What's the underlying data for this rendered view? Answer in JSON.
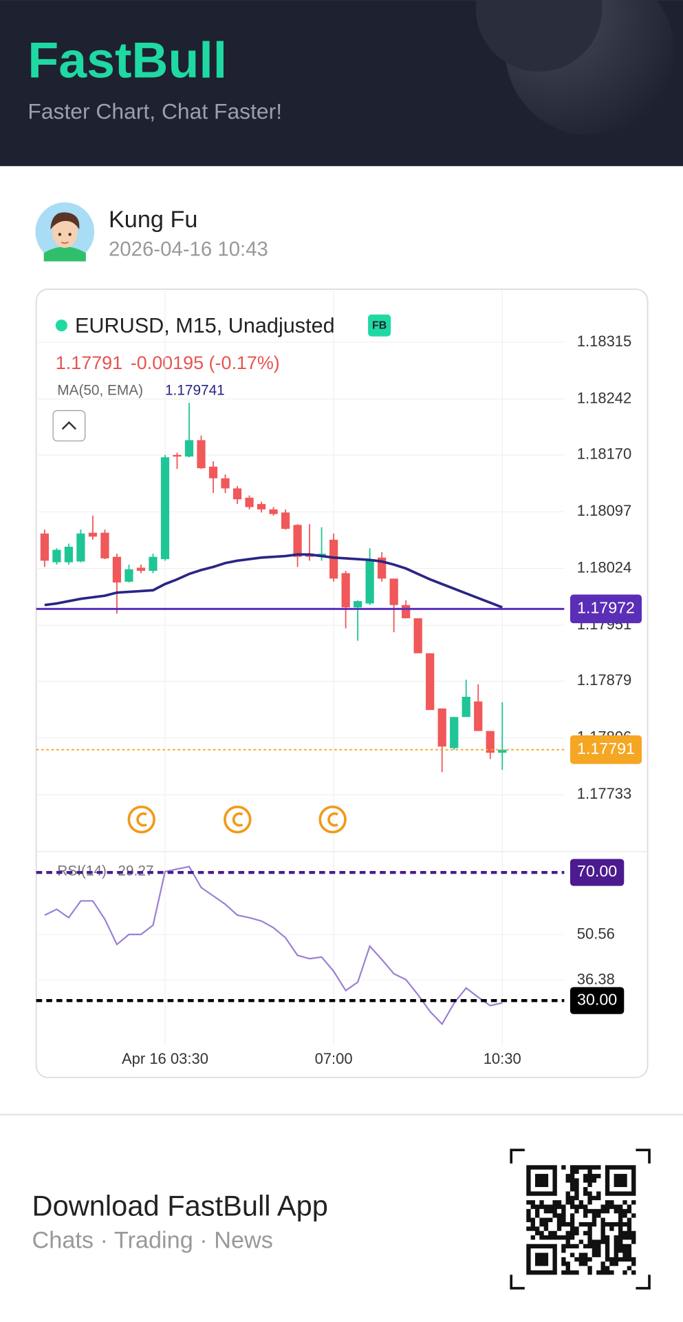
{
  "header": {
    "logo": "FastBull",
    "tagline": "Faster Chart, Chat Faster!"
  },
  "post": {
    "author": "Kung Fu",
    "timestamp": "2026-04-16 10:43"
  },
  "chart_data": [
    {
      "type": "candlestick",
      "title": "EURUSD, M15, Unadjusted",
      "badge": "FB",
      "last_price": 1.17791,
      "change": "-0.00195 (-0.17%)",
      "ma": {
        "label": "MA(50, EMA)",
        "value": 1.179741,
        "color": "#2a2585",
        "values": [
          1.17977,
          1.17979,
          1.17982,
          1.17985,
          1.17987,
          1.17989,
          1.17993,
          1.17994,
          1.17995,
          1.17996,
          1.18004,
          1.1801,
          1.18017,
          1.18022,
          1.18026,
          1.18031,
          1.18034,
          1.18036,
          1.18038,
          1.18039,
          1.1804,
          1.18042,
          1.18042,
          1.1804,
          1.18038,
          1.18037,
          1.18036,
          1.18035,
          1.18033,
          1.18029,
          1.18024,
          1.18017,
          1.1801,
          1.18004,
          1.17998,
          1.17992,
          1.17986,
          1.1798,
          1.17974
        ]
      },
      "categories": [
        null,
        null,
        null,
        null,
        null,
        null,
        null,
        null,
        null,
        null,
        "Apr 16 03:30",
        null,
        null,
        null,
        null,
        null,
        null,
        null,
        null,
        null,
        null,
        null,
        null,
        null,
        "07:00",
        null,
        null,
        null,
        null,
        null,
        null,
        null,
        null,
        null,
        null,
        null,
        null,
        null,
        "10:30"
      ],
      "open": [
        1.18069,
        1.18032,
        1.18032,
        1.18033,
        1.1807,
        1.1807,
        1.18039,
        1.18007,
        1.18025,
        1.18021,
        1.18036,
        1.1817,
        1.18168,
        1.18189,
        1.18155,
        1.1814,
        1.18127,
        1.18115,
        1.18107,
        1.181,
        1.18096,
        1.1808,
        1.18043,
        1.18039,
        1.18061,
        1.18018,
        1.17974,
        1.17979,
        1.18038,
        1.18011,
        1.17977,
        1.1796,
        1.17915,
        1.17844,
        1.17793,
        1.17833,
        1.17853,
        1.17815,
        1.17787
      ],
      "high": [
        1.18074,
        1.1805,
        1.18056,
        1.18074,
        1.18092,
        1.18074,
        1.18043,
        1.18029,
        1.18029,
        1.18043,
        1.1817,
        1.18173,
        1.18237,
        1.18195,
        1.18162,
        1.18145,
        1.1813,
        1.18118,
        1.1811,
        1.18103,
        1.181,
        1.18081,
        1.18081,
        1.18077,
        1.18069,
        1.18021,
        1.17983,
        1.1805,
        1.18045,
        1.18011,
        1.17983,
        1.1796,
        1.17915,
        1.17844,
        1.17833,
        1.17881,
        1.17875,
        1.17815,
        1.17852
      ],
      "low": [
        1.18026,
        1.18029,
        1.18029,
        1.18032,
        1.18061,
        1.18036,
        1.17966,
        1.18006,
        1.18018,
        1.18018,
        1.18034,
        1.18152,
        1.18167,
        1.18152,
        1.18121,
        1.18121,
        1.18107,
        1.181,
        1.18096,
        1.18092,
        1.18074,
        1.18026,
        1.18034,
        1.18034,
        1.18007,
        1.17947,
        1.17931,
        1.17977,
        1.18007,
        1.17942,
        1.1796,
        1.17915,
        1.17842,
        1.17762,
        1.17791,
        1.17833,
        1.17815,
        1.17779,
        1.17765
      ],
      "close": [
        1.18034,
        1.18048,
        1.18052,
        1.18069,
        1.18065,
        1.18037,
        1.18006,
        1.18023,
        1.18021,
        1.18039,
        1.18167,
        1.18168,
        1.18189,
        1.18153,
        1.1814,
        1.18127,
        1.18113,
        1.18103,
        1.181,
        1.18094,
        1.18075,
        1.18039,
        1.18039,
        1.18043,
        1.18011,
        1.17974,
        1.17982,
        1.18036,
        1.18011,
        1.17977,
        1.1796,
        1.17915,
        1.17842,
        1.17795,
        1.17833,
        1.17859,
        1.17815,
        1.17787,
        1.17791
      ],
      "up_color": "#1fc597",
      "down_color": "#f0585a",
      "ylim": [
        1.1766,
        1.18381
      ],
      "yticks": [
        1.18315,
        1.18242,
        {
          "value": 1.1817,
          "label": "1.18170"
        },
        1.18097,
        1.18024,
        1.17951,
        1.17879,
        1.17806,
        1.17733
      ],
      "grid": true,
      "price_line": {
        "value": 1.17972,
        "color": "#5b2eb8"
      },
      "current_price_line": {
        "value": 1.17791,
        "color": "#f5a623"
      }
    },
    {
      "type": "line",
      "title": "RSI(14)",
      "color": "#9b7fd4",
      "values": [
        56.67,
        58.5,
        55.88,
        61.11,
        61.11,
        55.36,
        47.52,
        50.65,
        50.65,
        53.53,
        70.26,
        71.05,
        71.83,
        65.29,
        62.68,
        60.07,
        56.67,
        55.88,
        54.84,
        52.75,
        49.61,
        44.12,
        43.07,
        43.59,
        39.15,
        33.14,
        35.75,
        46.99,
        42.81,
        38.37,
        36.54,
        31.83,
        26.6,
        22.68,
        29.22,
        33.92,
        31.05,
        28.43,
        29.27
      ],
      "ylim": [
        16,
        76
      ],
      "yticks": [
        50.56,
        36.38
      ],
      "levels": [
        {
          "value": 70,
          "label": "70.00",
          "color": "#4b1b8f"
        },
        {
          "value": 30,
          "label": "30.00",
          "color": "#000000"
        }
      ]
    }
  ],
  "footer": {
    "title": "Download FastBull App",
    "subtitle": "Chats · Trading · News"
  }
}
